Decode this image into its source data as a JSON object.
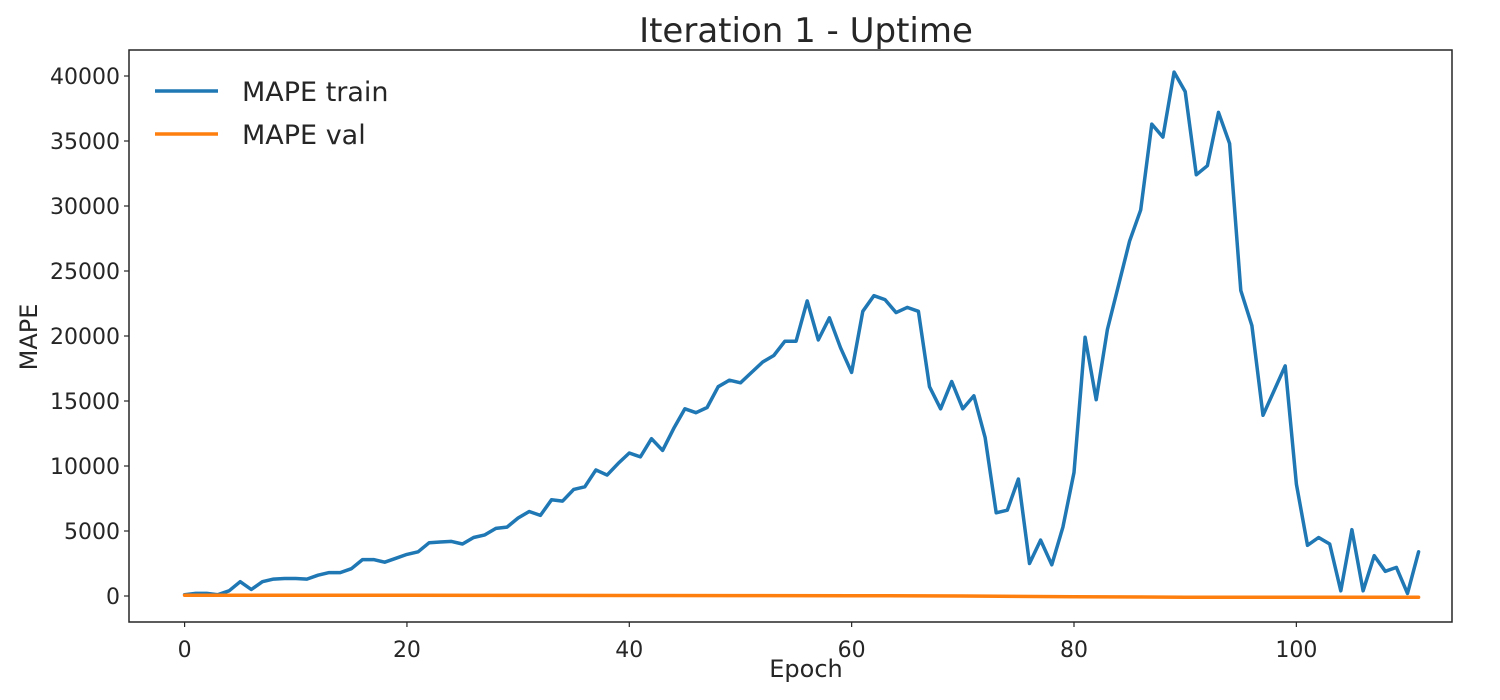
{
  "chart_data": {
    "type": "line",
    "title": "Iteration 1 - Uptime",
    "xlabel": "Epoch",
    "ylabel": "MAPE",
    "xlim": [
      -5,
      114
    ],
    "ylim": [
      -2000,
      42000
    ],
    "xticks": [
      0,
      20,
      40,
      60,
      80,
      100
    ],
    "yticks": [
      0,
      5000,
      10000,
      15000,
      20000,
      25000,
      30000,
      35000,
      40000
    ],
    "grid": false,
    "legend_position": "top-left",
    "series": [
      {
        "name": "MAPE train",
        "color": "#1f77b4",
        "x": [
          0,
          1,
          2,
          3,
          4,
          5,
          6,
          7,
          8,
          9,
          10,
          11,
          12,
          13,
          14,
          15,
          16,
          17,
          18,
          19,
          20,
          21,
          22,
          23,
          24,
          25,
          26,
          27,
          28,
          29,
          30,
          31,
          32,
          33,
          34,
          35,
          36,
          37,
          38,
          39,
          40,
          41,
          42,
          43,
          44,
          45,
          46,
          47,
          48,
          49,
          50,
          51,
          52,
          53,
          54,
          55,
          56,
          57,
          58,
          59,
          60,
          61,
          62,
          63,
          64,
          65,
          66,
          67,
          68,
          69,
          70,
          71,
          72,
          73,
          74,
          75,
          76,
          77,
          78,
          79,
          80,
          81,
          82,
          83,
          84,
          85,
          86,
          87,
          88,
          89,
          90,
          91,
          92,
          93,
          94,
          95,
          96,
          97,
          98,
          99,
          100,
          101,
          102,
          103,
          104,
          105,
          106,
          107,
          108,
          109,
          110,
          111
        ],
        "y": [
          100,
          200,
          200,
          100,
          400,
          1100,
          500,
          1100,
          1300,
          1350,
          1350,
          1300,
          1600,
          1800,
          1800,
          2100,
          2800,
          2800,
          2600,
          2900,
          3200,
          3400,
          4100,
          4150,
          4200,
          4000,
          4500,
          4700,
          5200,
          5300,
          6000,
          6500,
          6200,
          7400,
          7300,
          8200,
          8400,
          9700,
          9300,
          10200,
          11000,
          10700,
          12100,
          11200,
          12900,
          14400,
          14100,
          14500,
          16100,
          16600,
          16400,
          17200,
          18000,
          18500,
          19600,
          19600,
          22700,
          19700,
          21400,
          19100,
          17200,
          21900,
          23100,
          22800,
          21800,
          22200,
          21900,
          16100,
          14400,
          16500,
          14400,
          15400,
          12200,
          6400,
          6600,
          9000,
          2500,
          4300,
          2400,
          5300,
          9500,
          19900,
          15100,
          20500,
          23900,
          27300,
          29700,
          36300,
          35300,
          40300,
          38800,
          32400,
          33100,
          37200,
          34800,
          23500,
          20800,
          13900,
          15800,
          17700,
          8600,
          3900,
          4500,
          4000,
          400,
          5100,
          400,
          3100,
          1900,
          2200,
          200,
          3400
        ]
      },
      {
        "name": "MAPE val",
        "color": "#ff7f0e",
        "x": [
          0,
          10,
          20,
          30,
          40,
          50,
          60,
          70,
          80,
          90,
          100,
          111
        ],
        "y": [
          60,
          60,
          60,
          50,
          40,
          30,
          20,
          0,
          -60,
          -90,
          -100,
          -100
        ]
      }
    ]
  }
}
